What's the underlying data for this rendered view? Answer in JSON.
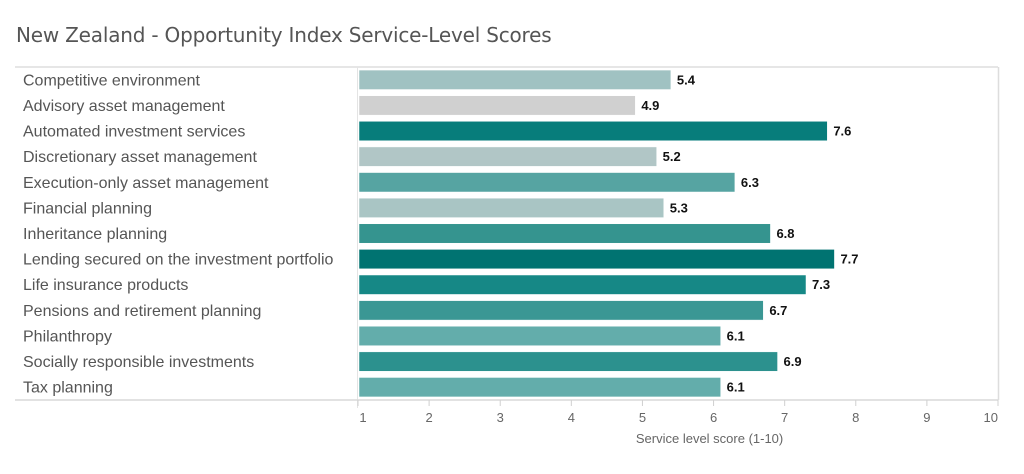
{
  "chart_data": {
    "type": "bar",
    "orientation": "horizontal",
    "title": "New Zealand - Opportunity Index Service-Level Scores",
    "xlabel": "Service level score (1-10)",
    "ylabel": "",
    "xlim": [
      1,
      10
    ],
    "xticks": [
      1,
      2,
      3,
      4,
      5,
      6,
      7,
      8,
      9,
      10
    ],
    "grid": false,
    "legend": "none",
    "categories": [
      "Competitive environment",
      "Advisory asset management",
      "Automated investment services",
      "Discretionary asset management",
      "Execution-only asset management",
      "Financial planning",
      "Inheritance planning",
      "Lending secured on the investment portfolio",
      "Life insurance products",
      "Pensions and retirement planning",
      "Philanthropy",
      "Socially responsible investments",
      "Tax planning"
    ],
    "values": [
      5.4,
      4.9,
      7.6,
      5.2,
      6.3,
      5.3,
      6.8,
      7.7,
      7.3,
      6.7,
      6.1,
      6.9,
      6.1
    ],
    "value_labels": [
      "5.4",
      "4.9",
      "7.6",
      "5.2",
      "6.3",
      "5.3",
      "6.8",
      "7.7",
      "7.3",
      "6.7",
      "6.1",
      "6.9",
      "6.1"
    ],
    "color_scale": {
      "low": "#d3d3d3",
      "mid": "#a3c4c4",
      "high": "#007371"
    },
    "bar_colors": [
      "#a0c2c2",
      "#d0d0d0",
      "#077d7b",
      "#b1c6c6",
      "#56a4a2",
      "#a9c5c4",
      "#35948f",
      "#007371",
      "#168886",
      "#3a9794",
      "#63adab",
      "#2c918e",
      "#63adab"
    ]
  }
}
